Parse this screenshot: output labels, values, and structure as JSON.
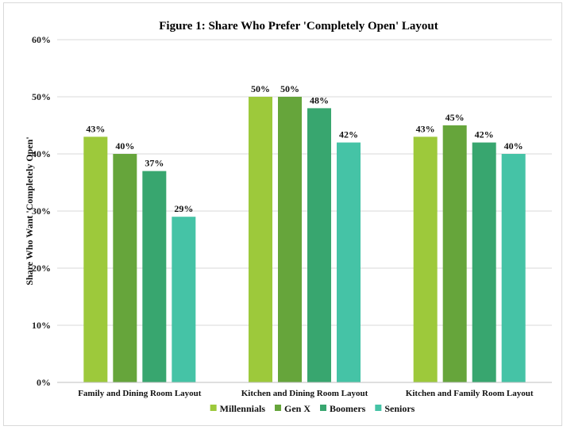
{
  "chart_data": {
    "type": "bar",
    "title": "Figure 1: Share Who Prefer 'Completely Open' Layout",
    "xlabel": "",
    "ylabel": "Share Who Want 'Completely Open'",
    "ylim": [
      0,
      60
    ],
    "yticks": [
      "0%",
      "10%",
      "20%",
      "30%",
      "40%",
      "50%",
      "60%"
    ],
    "grid": true,
    "legend_position": "bottom",
    "categories": [
      "Family and Dining Room Layout",
      "Kitchen and Dining Room Layout",
      "Kitchen and Family Room Layout"
    ],
    "series": [
      {
        "name": "Millennials",
        "color": "#9dc93b",
        "values": [
          43,
          50,
          43
        ],
        "labels": [
          "43%",
          "50%",
          "43%"
        ]
      },
      {
        "name": "Gen X",
        "color": "#66a53b",
        "values": [
          40,
          50,
          45
        ],
        "labels": [
          "40%",
          "50%",
          "45%"
        ]
      },
      {
        "name": "Boomers",
        "color": "#38a66f",
        "values": [
          37,
          48,
          42
        ],
        "labels": [
          "37%",
          "48%",
          "42%"
        ]
      },
      {
        "name": "Seniors",
        "color": "#45c3a6",
        "values": [
          29,
          42,
          40
        ],
        "labels": [
          "29%",
          "42%",
          "40%"
        ]
      }
    ]
  }
}
